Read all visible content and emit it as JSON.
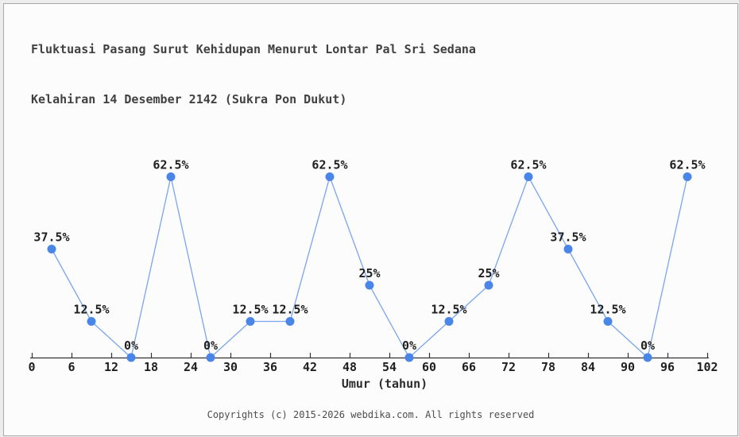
{
  "header": {
    "title_line1": "Fluktuasi Pasang Surut Kehidupan Menurut Lontar Pal Sri Sedana",
    "title_line2": "Kelahiran 14 Desember 2142 (Sukra Pon Dukut)"
  },
  "footer": {
    "copyright": "Copyrights (c) 2015-2026 webdika.com. All rights reserved"
  },
  "chart_data": {
    "type": "line",
    "title": "Fluktuasi Pasang Surut Kehidupan Menurut Lontar Pal Sri Sedana Kelahiran 14 Desember 2142 (Sukra Pon Dukut)",
    "xlabel": "Umur (tahun)",
    "ylabel": "",
    "x": [
      3,
      9,
      15,
      21,
      27,
      33,
      39,
      45,
      51,
      57,
      63,
      69,
      75,
      81,
      87,
      93,
      99
    ],
    "values": [
      37.5,
      12.5,
      0,
      62.5,
      0,
      12.5,
      12.5,
      62.5,
      25,
      0,
      12.5,
      25,
      62.5,
      37.5,
      12.5,
      0,
      62.5
    ],
    "point_labels": [
      "37.5%",
      "12.5%",
      "0%",
      "62.5%",
      "0%",
      "12.5%",
      "12.5%",
      "62.5%",
      "25%",
      "0%",
      "12.5%",
      "25%",
      "62.5%",
      "37.5%",
      "12.5%",
      "0%",
      "62.5%"
    ],
    "x_ticks": [
      0,
      6,
      12,
      18,
      24,
      30,
      36,
      42,
      48,
      54,
      60,
      66,
      72,
      78,
      84,
      90,
      96,
      102
    ],
    "xlim": [
      0,
      102
    ],
    "ylim": [
      0,
      100
    ],
    "grid": false,
    "legend": "none",
    "colors": {
      "line": "#7aa5ee",
      "marker": "#4a86e8",
      "axis": "#333333",
      "tick_text": "#1f1f1f",
      "point_label_text": "#1f1f1f",
      "title_text": "#414141",
      "background": "#fcfcfc",
      "border": "#a8a8a8"
    }
  }
}
